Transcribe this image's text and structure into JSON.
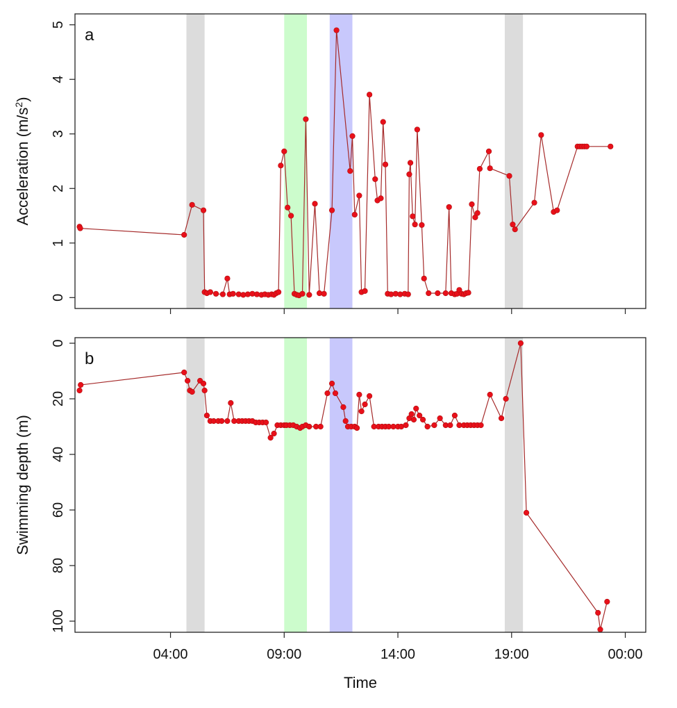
{
  "chart_data": [
    {
      "panel_label": "a",
      "type": "line",
      "xlabel": "",
      "ylabel": "Acceleration (m/s²)",
      "ylabel_parts": [
        "Acceleration (m/s",
        "2",
        ")"
      ],
      "xlim": [
        -0.2,
        24.9
      ],
      "ylim": [
        -0.2,
        5.2
      ],
      "y_ticks": [
        0,
        1,
        2,
        3,
        4,
        5
      ],
      "y_tick_labels": [
        "0",
        "1",
        "2",
        "3",
        "4",
        "5"
      ],
      "x_ticks": [
        4,
        9,
        14,
        19,
        24
      ],
      "shaded_bands": [
        {
          "start": 4.7,
          "end": 5.5,
          "color": "#dcdcdc"
        },
        {
          "start": 9.0,
          "end": 10.0,
          "color": "#ccfccc"
        },
        {
          "start": 11.0,
          "end": 12.0,
          "color": "#c8c8fc"
        },
        {
          "start": 18.7,
          "end": 19.5,
          "color": "#dcdcdc"
        }
      ],
      "line_color": "#a52a2a",
      "point_color": "#e8101a",
      "series": [
        {
          "x": [
            0.0,
            0.03,
            4.6,
            4.95,
            5.45,
            5.5,
            5.6,
            5.75,
            6.0,
            6.3,
            6.5,
            6.6,
            6.75,
            7.0,
            7.2,
            7.4,
            7.6,
            7.8,
            8.0,
            8.15,
            8.3,
            8.45,
            8.55,
            8.65,
            8.75,
            8.85,
            9.0,
            9.15,
            9.3,
            9.45,
            9.55,
            9.65,
            9.8,
            9.95,
            10.1,
            10.35,
            10.55,
            10.75,
            11.1,
            11.3,
            11.9,
            12.0,
            12.1,
            12.3,
            12.4,
            12.55,
            12.75,
            13.0,
            13.1,
            13.25,
            13.35,
            13.45,
            13.55,
            13.7,
            13.9,
            14.1,
            14.3,
            14.45,
            14.5,
            14.55,
            14.65,
            14.75,
            14.85,
            15.05,
            15.15,
            15.35,
            15.75,
            16.1,
            16.25,
            16.35,
            16.5,
            16.6,
            16.7,
            16.8,
            16.9,
            17.0,
            17.1,
            17.25,
            17.4,
            17.5,
            17.6,
            18.0,
            18.05,
            18.9,
            19.05,
            19.15,
            20.0,
            20.3,
            20.85,
            21.0,
            21.9,
            22.0,
            22.1,
            22.2,
            22.3,
            23.35
          ],
          "y": [
            1.3,
            1.27,
            1.15,
            1.7,
            1.6,
            0.1,
            0.08,
            0.1,
            0.07,
            0.06,
            0.35,
            0.06,
            0.07,
            0.06,
            0.05,
            0.06,
            0.07,
            0.06,
            0.05,
            0.06,
            0.05,
            0.06,
            0.05,
            0.08,
            0.1,
            2.42,
            2.68,
            1.65,
            1.5,
            0.07,
            0.05,
            0.04,
            0.07,
            3.27,
            0.05,
            1.72,
            0.08,
            0.07,
            1.6,
            4.9,
            2.32,
            2.96,
            1.52,
            1.87,
            0.1,
            0.12,
            3.72,
            2.17,
            1.78,
            1.82,
            3.22,
            2.44,
            0.07,
            0.06,
            0.07,
            0.06,
            0.07,
            0.06,
            2.26,
            2.47,
            1.49,
            1.34,
            3.08,
            1.33,
            0.35,
            0.08,
            0.08,
            0.08,
            1.66,
            0.08,
            0.06,
            0.07,
            0.14,
            0.07,
            0.06,
            0.08,
            0.09,
            1.71,
            1.47,
            1.55,
            2.36,
            2.68,
            2.37,
            2.23,
            1.34,
            1.25,
            1.74,
            2.98,
            1.57,
            1.6,
            2.77,
            2.77,
            2.77,
            2.77,
            2.77,
            2.77
          ]
        }
      ]
    },
    {
      "panel_label": "b",
      "type": "line",
      "xlabel": "Time",
      "ylabel": "Swimming depth (m)",
      "xlim": [
        -0.2,
        24.9
      ],
      "ylim": [
        -2,
        104
      ],
      "y_inverted": true,
      "y_ticks": [
        0,
        20,
        40,
        60,
        80,
        100
      ],
      "y_tick_labels": [
        "0",
        "20",
        "40",
        "60",
        "80",
        "100"
      ],
      "x_ticks": [
        4,
        9,
        14,
        19,
        24
      ],
      "x_tick_labels": [
        "04:00",
        "09:00",
        "14:00",
        "19:00",
        "00:00"
      ],
      "shaded_bands": [
        {
          "start": 4.7,
          "end": 5.5,
          "color": "#dcdcdc"
        },
        {
          "start": 9.0,
          "end": 10.0,
          "color": "#ccfccc"
        },
        {
          "start": 11.0,
          "end": 12.0,
          "color": "#c8c8fc"
        },
        {
          "start": 18.7,
          "end": 19.5,
          "color": "#dcdcdc"
        }
      ],
      "line_color": "#a52a2a",
      "point_color": "#e8101a",
      "series": [
        {
          "x": [
            0.0,
            0.05,
            4.6,
            4.75,
            4.85,
            4.95,
            5.3,
            5.45,
            5.5,
            5.6,
            5.75,
            5.9,
            6.1,
            6.25,
            6.5,
            6.65,
            6.8,
            7.0,
            7.15,
            7.3,
            7.45,
            7.6,
            7.75,
            7.9,
            8.05,
            8.2,
            8.4,
            8.55,
            8.7,
            8.85,
            9.0,
            9.1,
            9.25,
            9.4,
            9.55,
            9.7,
            9.8,
            9.95,
            10.1,
            10.4,
            10.6,
            10.9,
            11.1,
            11.25,
            11.6,
            11.7,
            11.8,
            11.95,
            12.1,
            12.2,
            12.3,
            12.4,
            12.55,
            12.75,
            12.95,
            13.15,
            13.3,
            13.45,
            13.6,
            13.8,
            14.0,
            14.15,
            14.35,
            14.5,
            14.6,
            14.7,
            14.8,
            14.95,
            15.1,
            15.3,
            15.6,
            15.85,
            16.1,
            16.3,
            16.5,
            16.7,
            16.9,
            17.05,
            17.2,
            17.35,
            17.5,
            17.65,
            18.05,
            18.55,
            18.75,
            19.4,
            19.65,
            22.8,
            22.9,
            23.2
          ],
          "y": [
            17,
            15,
            10.5,
            13.5,
            17,
            17.5,
            13.5,
            14.5,
            17,
            26,
            28,
            28,
            28,
            28,
            28,
            21.5,
            28,
            28,
            28,
            28,
            28,
            28,
            28.5,
            28.5,
            28.5,
            28.5,
            34,
            32.5,
            29.5,
            29.5,
            29.5,
            29.5,
            29.5,
            29.5,
            30,
            30.5,
            30,
            29.5,
            30,
            30,
            30,
            18,
            14.5,
            18,
            23,
            28,
            30,
            30,
            30,
            30.5,
            18.5,
            24.5,
            22,
            19,
            30,
            30,
            30,
            30,
            30,
            30,
            30,
            30,
            29.5,
            27,
            25.5,
            27.5,
            23.5,
            26,
            27.5,
            30,
            29.5,
            27,
            29.5,
            29.5,
            26,
            29.5,
            29.5,
            29.5,
            29.5,
            29.5,
            29.5,
            29.5,
            18.5,
            27,
            20,
            0,
            61,
            97,
            103,
            93
          ]
        }
      ]
    }
  ]
}
